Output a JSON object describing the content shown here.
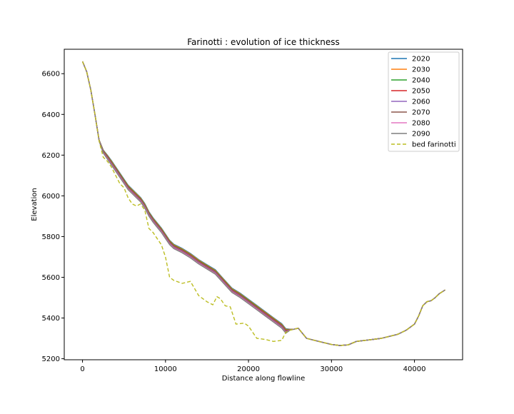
{
  "chart_data": {
    "type": "line",
    "title": "Farinotti : evolution of ice thickness",
    "xlabel": "Distance along flowline",
    "ylabel": "Elevation",
    "xlim": [
      -2200,
      45800
    ],
    "ylim": [
      5195,
      6720
    ],
    "x_ticks": [
      0,
      10000,
      20000,
      30000,
      40000
    ],
    "y_ticks": [
      5200,
      5400,
      5600,
      5800,
      6000,
      6200,
      6400,
      6600
    ],
    "grid": false,
    "legend_position": "upper right",
    "series": [
      {
        "name": "2020",
        "color": "#1f77b4",
        "dash": "",
        "offset_scale": 1.0
      },
      {
        "name": "2030",
        "color": "#ff7f0e",
        "dash": "",
        "offset_scale": 0.86
      },
      {
        "name": "2040",
        "color": "#2ca02c",
        "dash": "",
        "offset_scale": 0.72
      },
      {
        "name": "2050",
        "color": "#d62728",
        "dash": "",
        "offset_scale": 0.58
      },
      {
        "name": "2060",
        "color": "#9467bd",
        "dash": "",
        "offset_scale": 0.44
      },
      {
        "name": "2070",
        "color": "#8c564b",
        "dash": "",
        "offset_scale": 0.3
      },
      {
        "name": "2080",
        "color": "#e377c2",
        "dash": "",
        "offset_scale": 0.16
      },
      {
        "name": "2090",
        "color": "#7f7f7f",
        "dash": "",
        "offset_scale": 0.02
      },
      {
        "name": "bed farinotti",
        "color": "#bcbd22",
        "dash": "5,3",
        "offset_scale": null
      }
    ],
    "surface_2090": {
      "x": [
        0,
        500,
        1000,
        1500,
        2000,
        2500,
        3000,
        3500,
        4000,
        4500,
        5000,
        5500,
        6000,
        6500,
        7000,
        7500,
        8000,
        8500,
        9000,
        9500,
        10000,
        10500,
        11000,
        12000,
        13000,
        14000,
        15000,
        16000,
        17000,
        18000,
        19000,
        20000,
        21000,
        22000,
        23000,
        24000,
        24500,
        25000,
        25500,
        26000,
        27000,
        28000,
        29000,
        30000,
        31000,
        32000,
        33000,
        34000,
        35000,
        36000,
        37000,
        38000,
        39000,
        40000,
        40500,
        41000,
        41500,
        42000,
        42500,
        43000,
        43700
      ],
      "y": [
        6660,
        6610,
        6520,
        6400,
        6270,
        6210,
        6180,
        6150,
        6120,
        6090,
        6060,
        6030,
        6010,
        5990,
        5970,
        5940,
        5900,
        5870,
        5845,
        5820,
        5790,
        5760,
        5740,
        5720,
        5695,
        5665,
        5640,
        5615,
        5570,
        5525,
        5500,
        5470,
        5440,
        5410,
        5380,
        5350,
        5325,
        5340,
        5345,
        5350,
        5300,
        5290,
        5280,
        5270,
        5265,
        5268,
        5285,
        5290,
        5295,
        5300,
        5310,
        5320,
        5340,
        5370,
        5410,
        5460,
        5480,
        5485,
        5500,
        5520,
        5538
      ]
    },
    "surface_2020_offset": [
      0,
      0,
      0,
      0,
      5,
      15,
      20,
      22,
      22,
      22,
      22,
      22,
      22,
      22,
      22,
      22,
      22,
      22,
      22,
      22,
      22,
      22,
      22,
      22,
      22,
      22,
      22,
      22,
      22,
      22,
      22,
      22,
      22,
      22,
      22,
      22,
      22,
      5,
      0,
      0,
      0,
      0,
      0,
      0,
      0,
      0,
      0,
      0,
      0,
      0,
      0,
      0,
      0,
      0,
      0,
      0,
      0,
      0,
      0,
      0,
      0
    ],
    "bed": {
      "x": [
        0,
        500,
        1000,
        1500,
        2000,
        2500,
        3000,
        3500,
        4000,
        4500,
        5000,
        5500,
        6000,
        6500,
        7000,
        7500,
        8000,
        8500,
        9000,
        9500,
        10000,
        10500,
        11000,
        12000,
        13000,
        14000,
        15000,
        15700,
        16200,
        16600,
        17200,
        17800,
        18500,
        19500,
        20000,
        21000,
        22000,
        23000,
        24000,
        24500,
        25000,
        25500,
        26000,
        27000,
        28000,
        29000,
        30000,
        31000,
        32000,
        33000,
        34000,
        35000,
        36000,
        37000,
        38000,
        39000,
        40000,
        40500,
        41000,
        41500,
        42000,
        42500,
        43000,
        43700
      ],
      "y": [
        6660,
        6610,
        6520,
        6400,
        6270,
        6190,
        6170,
        6140,
        6100,
        6060,
        6040,
        5990,
        5960,
        5950,
        5960,
        5930,
        5840,
        5820,
        5790,
        5760,
        5700,
        5600,
        5585,
        5570,
        5580,
        5510,
        5480,
        5465,
        5505,
        5495,
        5460,
        5455,
        5370,
        5375,
        5360,
        5300,
        5295,
        5285,
        5290,
        5330,
        5340,
        5345,
        5350,
        5300,
        5290,
        5280,
        5270,
        5265,
        5268,
        5285,
        5290,
        5295,
        5300,
        5310,
        5320,
        5340,
        5370,
        5410,
        5460,
        5480,
        5485,
        5500,
        5520,
        5538
      ]
    }
  }
}
